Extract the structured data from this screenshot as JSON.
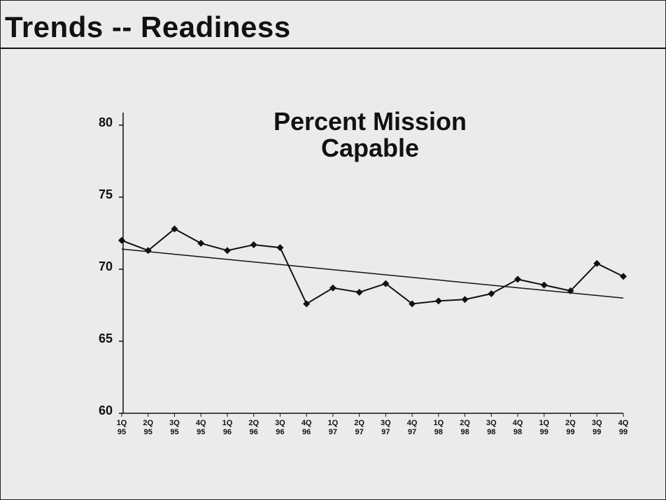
{
  "header": {
    "title": "Trends -- Readiness"
  },
  "chart_data": {
    "type": "line",
    "title": "Percent Mission Capable",
    "categories": [
      "1Q 95",
      "2Q 95",
      "3Q 95",
      "4Q 95",
      "1Q 96",
      "2Q 96",
      "3Q 96",
      "4Q 96",
      "1Q 97",
      "2Q 97",
      "3Q 97",
      "4Q 97",
      "1Q 98",
      "2Q 98",
      "3Q 98",
      "4Q 98",
      "1Q 99",
      "2Q 99",
      "3Q 99",
      "4Q 99"
    ],
    "values": [
      72.0,
      71.3,
      72.8,
      71.8,
      71.3,
      71.7,
      71.5,
      67.6,
      68.7,
      68.4,
      69.0,
      67.6,
      67.8,
      67.9,
      68.3,
      69.3,
      68.9,
      68.5,
      70.4,
      69.5
    ],
    "trend": [
      71.4,
      68.0
    ],
    "color": "#111111",
    "ylim": [
      60,
      80
    ],
    "yticks": [
      60,
      65,
      70,
      75,
      80
    ]
  }
}
